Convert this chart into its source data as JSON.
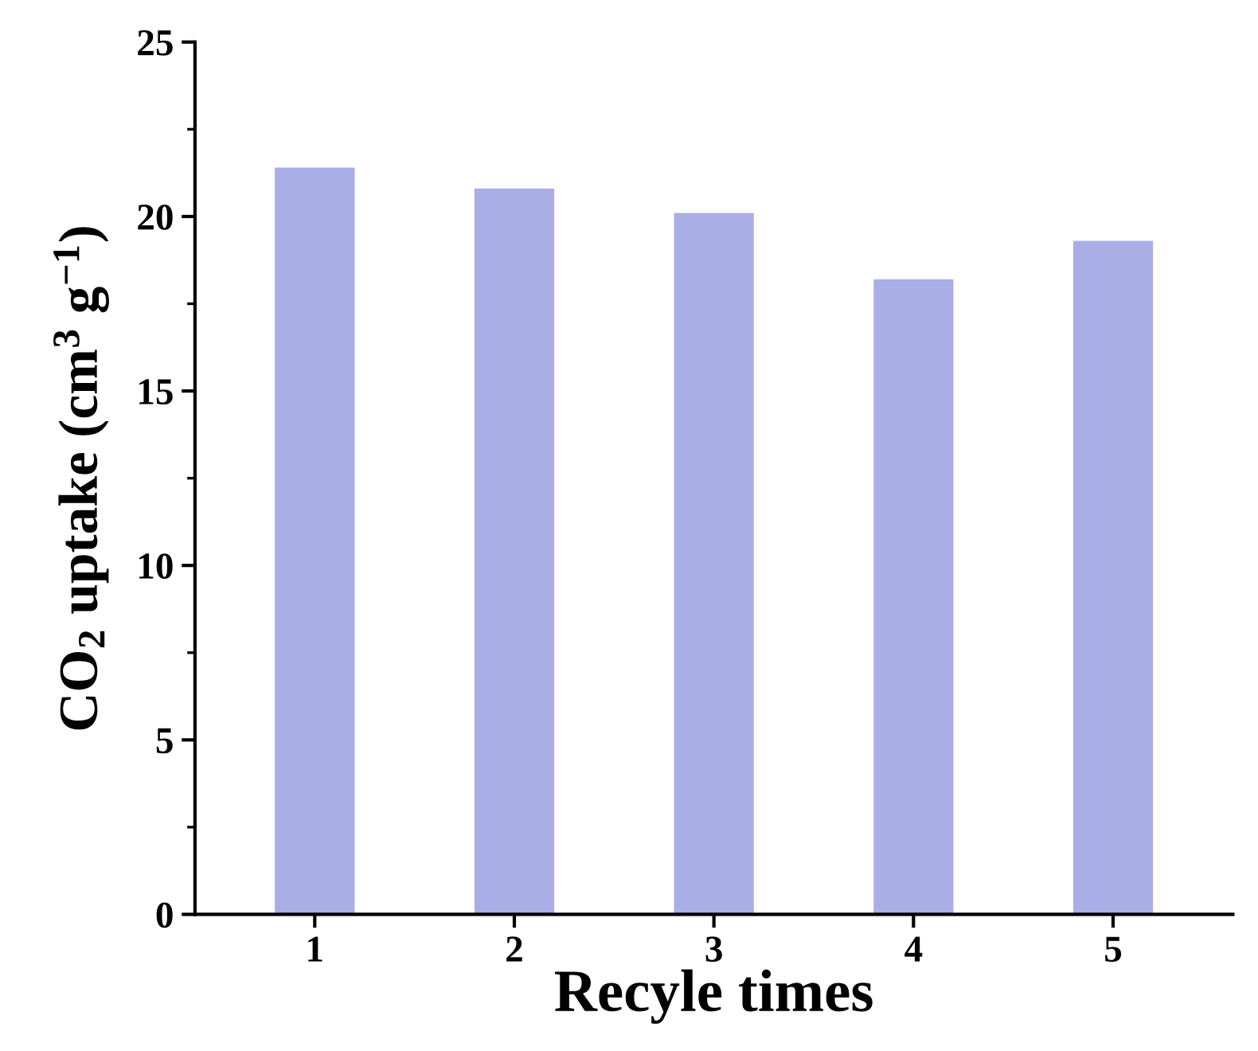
{
  "chart_data": {
    "type": "bar",
    "xlabel": "Recyle times",
    "ylabel": "CO$_{2}$ uptake (cm$^{3}$ g$^{−1}$)",
    "categories": [
      "1",
      "2",
      "3",
      "4",
      "5"
    ],
    "values": [
      21.4,
      20.8,
      20.1,
      18.2,
      19.3
    ],
    "color": "#a9aee6",
    "ylim": [
      0,
      25
    ],
    "yticks": [
      0,
      5,
      10,
      15,
      20,
      25
    ],
    "grid": false
  }
}
